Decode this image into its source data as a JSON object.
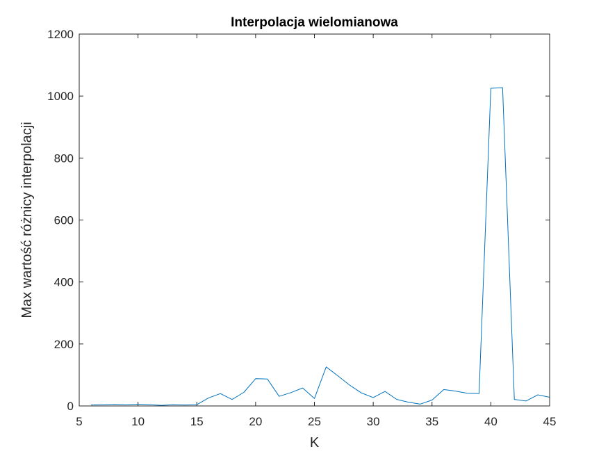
{
  "chart_data": {
    "type": "line",
    "title": "Interpolacja wielomianowa",
    "xlabel": "K",
    "ylabel": "Max wartość różnicy interpolacji",
    "xlim": [
      5,
      45
    ],
    "ylim": [
      0,
      1200
    ],
    "xticks": [
      5,
      10,
      15,
      20,
      25,
      30,
      35,
      40,
      45
    ],
    "yticks": [
      0,
      200,
      400,
      600,
      800,
      1000,
      1200
    ],
    "grid": false,
    "legend": "none",
    "series": [
      {
        "color": "#0072BD",
        "x": [
          6,
          7,
          8,
          9,
          10,
          11,
          12,
          13,
          14,
          15,
          16,
          17,
          18,
          19,
          20,
          21,
          22,
          23,
          24,
          25,
          26,
          27,
          28,
          29,
          30,
          31,
          32,
          33,
          34,
          35,
          36,
          37,
          38,
          39,
          40,
          41,
          42,
          43,
          44,
          45
        ],
        "y": [
          3,
          4,
          5,
          4,
          6,
          4,
          2,
          4,
          3,
          4,
          26,
          40,
          21,
          44,
          88,
          87,
          31,
          43,
          58,
          24,
          126,
          97,
          67,
          42,
          27,
          47,
          21,
          12,
          6,
          19,
          53,
          48,
          41,
          40,
          1025,
          1027,
          21,
          16,
          36,
          28
        ]
      }
    ]
  }
}
